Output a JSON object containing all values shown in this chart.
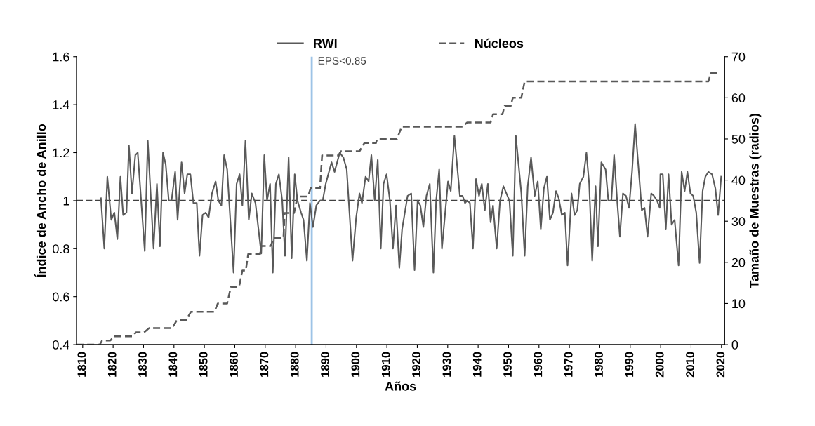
{
  "chart_data": {
    "type": "line",
    "xlabel": "Años",
    "ylabel": "Índice de Ancho de Anillo",
    "y2label": "Tamaño de Muestras (radios)",
    "xlim": [
      1808,
      2021
    ],
    "xticks": [
      1810,
      1820,
      1830,
      1840,
      1850,
      1860,
      1870,
      1880,
      1890,
      1900,
      1910,
      1920,
      1930,
      1940,
      1950,
      1960,
      1970,
      1980,
      1990,
      2000,
      2010,
      2020
    ],
    "ylim": [
      0.4,
      1.6
    ],
    "yticks": [
      0.4,
      0.6,
      0.8,
      1,
      1.2,
      1.4,
      1.6
    ],
    "y2lim": [
      0,
      70
    ],
    "y2ticks": [
      0,
      10,
      20,
      30,
      40,
      50,
      60,
      70
    ],
    "grid": false,
    "legend": "top",
    "ref_lines": [
      {
        "axis": "y",
        "value": 1,
        "color": "#404040",
        "line_style": "dashed"
      },
      {
        "axis": "x",
        "value": 1885.3,
        "label": "EPS<0.85",
        "color": "#9dc3e6",
        "line_style": "solid"
      }
    ],
    "series": [
      {
        "name": "RWI",
        "color": "#595959",
        "line_style": "solid",
        "x": [
          1816.0,
          1817.1,
          1818.1,
          1819.4,
          1820.4,
          1821.4,
          1822.4,
          1823.3,
          1824.4,
          1825.2,
          1826.2,
          1827.3,
          1828.1,
          1830.4,
          1831.4,
          1833.3,
          1834.4,
          1835.4,
          1836.4,
          1837.3,
          1838.3,
          1839.2,
          1840.4,
          1841.2,
          1842.5,
          1843.5,
          1844.4,
          1845.4,
          1846.4,
          1847.5,
          1848.4,
          1849.4,
          1850.4,
          1851.4,
          1852.5,
          1853.7,
          1854.6,
          1855.6,
          1856.5,
          1857.5,
          1859.6,
          1860.6,
          1861.6,
          1862.5,
          1863.5,
          1864.6,
          1865.6,
          1866.8,
          1868.7,
          1869.7,
          1870.6,
          1871.6,
          1872.5,
          1873.5,
          1874.5,
          1875.6,
          1876.5,
          1877.7,
          1878.7,
          1879.7,
          1880.6,
          1881.8,
          1882.6,
          1883.7,
          1884.7,
          1885.7,
          1886.8,
          1888.0,
          1888.9,
          1889.9,
          1891.8,
          1892.8,
          1894.5,
          1895.7,
          1896.8,
          1898.7,
          1899.9,
          1901.0,
          1901.8,
          1903.0,
          1904.0,
          1904.9,
          1906.0,
          1907.0,
          1908.0,
          1908.9,
          1909.9,
          1911.0,
          1912.0,
          1913.0,
          1914.1,
          1915.0,
          1916.8,
          1918.0,
          1919.1,
          1920.1,
          1921.0,
          1922.0,
          1923.0,
          1924.1,
          1925.3,
          1926.2,
          1927.2,
          1928.1,
          1929.1,
          1930.1,
          1931.0,
          1932.2,
          1934.0,
          1934.9,
          1935.7,
          1936.4,
          1937.3,
          1938.3,
          1939.3,
          1940.3,
          1941.2,
          1942.2,
          1943.2,
          1944.1,
          1944.9,
          1946.1,
          1947.2,
          1948.3,
          1949.3,
          1950.3,
          1951.4,
          1952.4,
          1954.2,
          1955.3,
          1956.3,
          1957.4,
          1958.6,
          1959.6,
          1960.6,
          1961.6,
          1962.6,
          1963.6,
          1964.6,
          1965.6,
          1966.5,
          1967.5,
          1968.5,
          1969.4,
          1970.7,
          1971.7,
          1972.6,
          1973.4,
          1974.6,
          1975.6,
          1976.5,
          1977.5,
          1978.6,
          1979.4,
          1980.5,
          1981.9,
          1982.8,
          1983.8,
          1984.7,
          1985.7,
          1986.6,
          1987.6,
          1988.6,
          1989.6,
          1990.6,
          1991.6,
          1993.8,
          1994.7,
          1995.7,
          1996.9,
          1997.8,
          1998.8,
          1999.7,
          1999.9,
          2000.7,
          2001.7,
          2002.6,
          2003.6,
          2004.6,
          2005.9,
          2006.9,
          2007.9,
          2008.8,
          2009.8,
          2010.7,
          2011.7,
          2012.8,
          2013.8,
          2014.7,
          2015.7,
          2016.9,
          2018.0,
          2018.9,
          2019.9
        ],
        "values": [
          1.01,
          0.8,
          1.1,
          0.92,
          0.95,
          0.84,
          1.1,
          0.94,
          0.95,
          1.23,
          1.03,
          1.19,
          1.2,
          0.79,
          1.25,
          0.8,
          1.07,
          0.81,
          1.2,
          1.15,
          1.0,
          1.0,
          1.12,
          0.92,
          1.16,
          1.03,
          1.11,
          1.11,
          0.99,
          0.99,
          0.77,
          0.94,
          0.95,
          0.93,
          1.03,
          1.08,
          1.0,
          0.98,
          1.19,
          1.13,
          0.7,
          1.07,
          1.11,
          0.98,
          1.25,
          0.92,
          1.03,
          0.99,
          0.78,
          1.19,
          1.0,
          1.07,
          0.7,
          1.07,
          1.11,
          1.0,
          0.77,
          1.18,
          0.76,
          1.11,
          1.0,
          0.95,
          0.92,
          0.75,
          0.99,
          0.89,
          0.98,
          1.0,
          1.0,
          1.07,
          1.16,
          1.12,
          1.2,
          1.18,
          1.13,
          0.75,
          0.93,
          1.03,
          0.99,
          1.1,
          1.08,
          1.19,
          1.0,
          1.17,
          0.8,
          1.07,
          1.11,
          1.0,
          0.8,
          0.98,
          0.72,
          0.88,
          1.02,
          1.03,
          0.71,
          1.0,
          0.98,
          0.89,
          1.02,
          1.07,
          0.7,
          1.0,
          1.13,
          0.8,
          0.94,
          1.08,
          1.04,
          1.27,
          1.02,
          1.02,
          0.99,
          1.0,
          0.99,
          0.8,
          1.09,
          1.02,
          1.07,
          0.96,
          1.07,
          0.91,
          0.98,
          0.8,
          1.0,
          1.06,
          1.03,
          1.0,
          0.77,
          1.27,
          1.03,
          0.77,
          1.06,
          1.18,
          1.02,
          1.08,
          0.88,
          1.05,
          1.1,
          0.92,
          0.95,
          1.04,
          1.01,
          0.94,
          0.95,
          0.73,
          1.03,
          0.94,
          0.96,
          1.07,
          1.1,
          1.2,
          1.07,
          0.75,
          1.06,
          0.81,
          1.16,
          1.13,
          1.0,
          1.0,
          1.19,
          1.0,
          0.85,
          1.03,
          1.02,
          0.97,
          1.12,
          1.32,
          0.96,
          0.97,
          0.85,
          1.03,
          1.02,
          1.0,
          0.97,
          1.11,
          1.11,
          0.88,
          1.11,
          0.9,
          0.92,
          0.73,
          1.12,
          1.04,
          1.12,
          1.03,
          1.02,
          0.95,
          0.74,
          1.04,
          1.1,
          1.12,
          1.11,
          1.05,
          0.94,
          1.1
        ]
      },
      {
        "name": "Núcleos",
        "color": "#595959",
        "line_style": "dashed",
        "axis": "y2",
        "x": [
          1808,
          1815.6,
          1816.4,
          1819.1,
          1820.2,
          1826.4,
          1827.5,
          1830.2,
          1831.8,
          1839.4,
          1841,
          1844,
          1845.6,
          1853.3,
          1854.4,
          1857.5,
          1858.7,
          1861.4,
          1862.5,
          1863.6,
          1864.4,
          1868.3,
          1868.7,
          1871.8,
          1872.9,
          1876,
          1876.4,
          1879.5,
          1880.6,
          1884.1,
          1884.9,
          1888,
          1888.7,
          1894.1,
          1894.9,
          1901,
          1902.6,
          1906.4,
          1906.8,
          1913.3,
          1914.9,
          1934.9,
          1936.4,
          1944.1,
          1944.9,
          1948,
          1948.7,
          1950.7,
          1951.4,
          1954.2,
          1955.3,
          2015.7,
          2016.5,
          2018.8
        ],
        "values": [
          0,
          0,
          1,
          1,
          2,
          2,
          3,
          3,
          4,
          4,
          6,
          6,
          8,
          8,
          10,
          10,
          14,
          14,
          18,
          18,
          22,
          22,
          24,
          24,
          26,
          26,
          32,
          32,
          36,
          36,
          38,
          38,
          46,
          46,
          47,
          47,
          49,
          49,
          50,
          50,
          53,
          53,
          54,
          54,
          56,
          56,
          58,
          58,
          60,
          60,
          64,
          64,
          66,
          66
        ]
      }
    ]
  }
}
